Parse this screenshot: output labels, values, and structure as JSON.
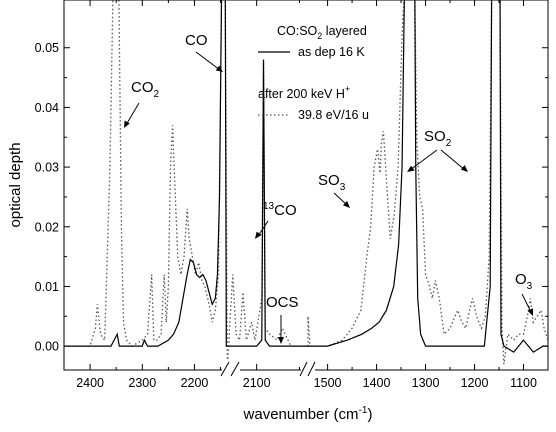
{
  "chart_data": {
    "type": "line",
    "xlabel": "wavenumber (cm",
    "xlabel_sup": "-1",
    "xlabel_end": ")",
    "ylabel": "optical depth",
    "x_reversed": true,
    "x_axis_broken": true,
    "x_break_segments": [
      {
        "range": [
          2450,
          2130
        ],
        "ticks": [
          2400,
          2300,
          2200
        ]
      },
      {
        "range": [
          2130,
          2040
        ],
        "ticks": [
          2100
        ]
      },
      {
        "range": [
          1540,
          1050
        ],
        "ticks": [
          1500,
          1400,
          1300,
          1200,
          1100
        ]
      }
    ],
    "ylim": [
      -0.004,
      0.058
    ],
    "y_ticks": [
      "0.00",
      "0.01",
      "0.02",
      "0.03",
      "0.04",
      "0.05"
    ],
    "x_tick_labels": [
      "2400",
      "2300",
      "2200",
      "2100",
      "1500",
      "1400",
      "1300",
      "1200",
      "1100"
    ],
    "legend": {
      "title_parts": [
        "CO:SO",
        "2",
        " layered"
      ],
      "line_label": "as dep 16 K",
      "subtitle_parts": [
        "after 200 keV H",
        "+"
      ],
      "dotted_label": "39.8 eV/16 u"
    },
    "annotations": [
      {
        "id": "co2",
        "text": "CO",
        "sub": "2",
        "sup": ""
      },
      {
        "id": "co",
        "text": "CO",
        "sub": "",
        "sup": ""
      },
      {
        "id": "13co",
        "text": "CO",
        "sub": "",
        "sup": "13"
      },
      {
        "id": "ocs",
        "text": "OCS",
        "sub": "",
        "sup": ""
      },
      {
        "id": "so3",
        "text": "SO",
        "sub": "3",
        "sup": ""
      },
      {
        "id": "so2",
        "text": "SO",
        "sub": "2",
        "sup": ""
      },
      {
        "id": "o3",
        "text": "O",
        "sub": "3",
        "sup": ""
      }
    ],
    "series": [
      {
        "name": "as dep 16 K",
        "style": "solid",
        "points": [
          [
            2450,
            0.0
          ],
          [
            2400,
            0.0
          ],
          [
            2360,
            0.0
          ],
          [
            2348,
            0.002
          ],
          [
            2344,
            0.0
          ],
          [
            2320,
            0.0
          ],
          [
            2300,
            0.0
          ],
          [
            2296,
            0.001
          ],
          [
            2290,
            0.0
          ],
          [
            2270,
            0.0
          ],
          [
            2250,
            0.001
          ],
          [
            2240,
            0.002
          ],
          [
            2230,
            0.004
          ],
          [
            2222,
            0.008
          ],
          [
            2214,
            0.012
          ],
          [
            2208,
            0.0145
          ],
          [
            2202,
            0.014
          ],
          [
            2196,
            0.012
          ],
          [
            2190,
            0.0115
          ],
          [
            2184,
            0.012
          ],
          [
            2178,
            0.011
          ],
          [
            2172,
            0.009
          ],
          [
            2166,
            0.007
          ],
          [
            2160,
            0.008
          ],
          [
            2156,
            0.012
          ],
          [
            2152,
            0.025
          ],
          [
            2148,
            0.06
          ],
          [
            2141,
            0.06
          ],
          [
            2139,
            0.0
          ],
          [
            2130,
            0.0
          ],
          [
            2120,
            0.0
          ],
          [
            2110,
            0.0
          ],
          [
            2100,
            0.0
          ],
          [
            2094,
            0.001
          ],
          [
            2092,
            0.048
          ],
          [
            2090,
            0.001
          ],
          [
            2085,
            0.0
          ],
          [
            2070,
            0.0
          ],
          [
            2040,
            0.0
          ],
          [
            1540,
            0.0
          ],
          [
            1500,
            0.0
          ],
          [
            1460,
            0.001
          ],
          [
            1430,
            0.002
          ],
          [
            1410,
            0.003
          ],
          [
            1395,
            0.004
          ],
          [
            1380,
            0.006
          ],
          [
            1365,
            0.01
          ],
          [
            1355,
            0.017
          ],
          [
            1348,
            0.03
          ],
          [
            1343,
            0.06
          ],
          [
            1322,
            0.06
          ],
          [
            1320,
            0.03
          ],
          [
            1316,
            0.008
          ],
          [
            1310,
            0.002
          ],
          [
            1300,
            0.0
          ],
          [
            1250,
            0.0
          ],
          [
            1200,
            0.0
          ],
          [
            1180,
            0.0
          ],
          [
            1168,
            0.01
          ],
          [
            1165,
            0.06
          ],
          [
            1148,
            0.06
          ],
          [
            1146,
            0.002
          ],
          [
            1140,
            0.0
          ],
          [
            1120,
            -0.001
          ],
          [
            1100,
            0.001
          ],
          [
            1080,
            -0.001
          ],
          [
            1060,
            0.0
          ],
          [
            1050,
            0.0
          ]
        ]
      },
      {
        "name": "39.8 eV/16 u",
        "style": "dotted",
        "points": [
          [
            2450,
            0.0
          ],
          [
            2400,
            0.0
          ],
          [
            2390,
            0.003
          ],
          [
            2386,
            0.007
          ],
          [
            2380,
            0.002
          ],
          [
            2372,
            0.001
          ],
          [
            2362,
            0.03
          ],
          [
            2356,
            0.06
          ],
          [
            2345,
            0.06
          ],
          [
            2340,
            0.02
          ],
          [
            2336,
            0.004
          ],
          [
            2330,
            0.001
          ],
          [
            2320,
            0.0
          ],
          [
            2300,
            0.001
          ],
          [
            2290,
            0.002
          ],
          [
            2282,
            0.012
          ],
          [
            2278,
            0.001
          ],
          [
            2272,
            0.001
          ],
          [
            2264,
            0.002
          ],
          [
            2258,
            0.012
          ],
          [
            2254,
            0.004
          ],
          [
            2250,
            0.01
          ],
          [
            2246,
            0.03
          ],
          [
            2242,
            0.037
          ],
          [
            2238,
            0.028
          ],
          [
            2232,
            0.015
          ],
          [
            2226,
            0.012
          ],
          [
            2220,
            0.015
          ],
          [
            2214,
            0.023
          ],
          [
            2210,
            0.018
          ],
          [
            2204,
            0.015
          ],
          [
            2198,
            0.012
          ],
          [
            2192,
            0.014
          ],
          [
            2186,
            0.011
          ],
          [
            2180,
            0.01
          ],
          [
            2172,
            0.007
          ],
          [
            2166,
            0.004
          ],
          [
            2160,
            0.006
          ],
          [
            2154,
            0.012
          ],
          [
            2148,
            0.06
          ],
          [
            2141,
            0.06
          ],
          [
            2137,
            -0.004
          ],
          [
            2132,
            0.004
          ],
          [
            2128,
            0.012
          ],
          [
            2124,
            0.002
          ],
          [
            2120,
            0.001
          ],
          [
            2116,
            0.009
          ],
          [
            2112,
            0.001
          ],
          [
            2106,
            0.004
          ],
          [
            2102,
            0.001
          ],
          [
            2094,
            0.008
          ],
          [
            2092,
            0.048
          ],
          [
            2090,
            0.003
          ],
          [
            2085,
            0.002
          ],
          [
            2076,
            0.001
          ],
          [
            2070,
            0.003
          ],
          [
            2060,
            0.0
          ],
          [
            2040,
            0.0
          ],
          [
            1540,
            0.005
          ],
          [
            1536,
            0.0
          ],
          [
            1500,
            0.0
          ],
          [
            1470,
            0.001
          ],
          [
            1450,
            0.003
          ],
          [
            1432,
            0.006
          ],
          [
            1420,
            0.015
          ],
          [
            1412,
            0.02
          ],
          [
            1405,
            0.03
          ],
          [
            1398,
            0.033
          ],
          [
            1393,
            0.029
          ],
          [
            1390,
            0.034
          ],
          [
            1386,
            0.036
          ],
          [
            1380,
            0.028
          ],
          [
            1372,
            0.018
          ],
          [
            1364,
            0.022
          ],
          [
            1356,
            0.03
          ],
          [
            1348,
            0.052
          ],
          [
            1343,
            0.06
          ],
          [
            1322,
            0.06
          ],
          [
            1318,
            0.035
          ],
          [
            1312,
            0.025
          ],
          [
            1306,
            0.023
          ],
          [
            1300,
            0.012
          ],
          [
            1292,
            0.01
          ],
          [
            1286,
            0.008
          ],
          [
            1280,
            0.011
          ],
          [
            1272,
            0.008
          ],
          [
            1262,
            0.002
          ],
          [
            1250,
            0.003
          ],
          [
            1240,
            0.005
          ],
          [
            1234,
            0.006
          ],
          [
            1226,
            0.004
          ],
          [
            1218,
            0.003
          ],
          [
            1210,
            0.006
          ],
          [
            1204,
            0.008
          ],
          [
            1196,
            0.005
          ],
          [
            1186,
            0.003
          ],
          [
            1178,
            0.005
          ],
          [
            1170,
            0.015
          ],
          [
            1165,
            0.06
          ],
          [
            1148,
            0.06
          ],
          [
            1144,
            0.003
          ],
          [
            1140,
            -0.003
          ],
          [
            1132,
            0.002
          ],
          [
            1120,
            0.001
          ],
          [
            1110,
            0.002
          ],
          [
            1100,
            0.002
          ],
          [
            1092,
            0.005
          ],
          [
            1086,
            0.008
          ],
          [
            1080,
            0.004
          ],
          [
            1072,
            0.005
          ],
          [
            1064,
            0.006
          ],
          [
            1058,
            0.003
          ],
          [
            1050,
            0.001
          ]
        ]
      }
    ]
  }
}
